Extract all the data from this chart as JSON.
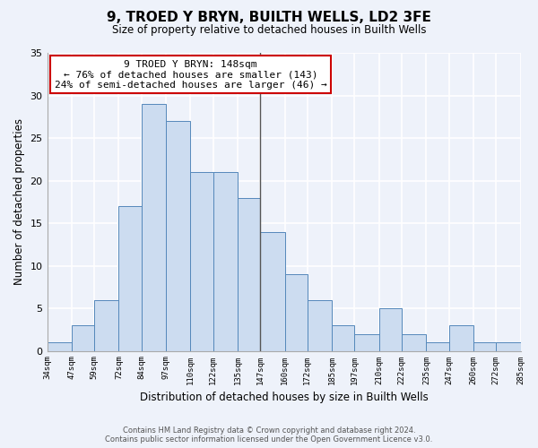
{
  "title": "9, TROED Y BRYN, BUILTH WELLS, LD2 3FE",
  "subtitle": "Size of property relative to detached houses in Builth Wells",
  "xlabel": "Distribution of detached houses by size in Builth Wells",
  "ylabel": "Number of detached properties",
  "bin_edges": [
    34,
    47,
    59,
    72,
    84,
    97,
    110,
    122,
    135,
    147,
    160,
    172,
    185,
    197,
    210,
    222,
    235,
    247,
    260,
    272,
    285
  ],
  "bin_labels": [
    "34sqm",
    "47sqm",
    "59sqm",
    "72sqm",
    "84sqm",
    "97sqm",
    "110sqm",
    "122sqm",
    "135sqm",
    "147sqm",
    "160sqm",
    "172sqm",
    "185sqm",
    "197sqm",
    "210sqm",
    "222sqm",
    "235sqm",
    "247sqm",
    "260sqm",
    "272sqm",
    "285sqm"
  ],
  "counts": [
    1,
    3,
    6,
    17,
    29,
    27,
    21,
    21,
    18,
    14,
    9,
    6,
    3,
    2,
    5,
    2,
    1,
    3,
    1,
    1
  ],
  "bar_color": "#ccdcf0",
  "bar_edge_color": "#5588bb",
  "vline_x": 147,
  "vline_color": "#555555",
  "annotation_title": "9 TROED Y BRYN: 148sqm",
  "annotation_line1": "← 76% of detached houses are smaller (143)",
  "annotation_line2": "24% of semi-detached houses are larger (46) →",
  "annotation_box_color": "#ffffff",
  "annotation_box_edge_color": "#cc0000",
  "ylim": [
    0,
    35
  ],
  "yticks": [
    0,
    5,
    10,
    15,
    20,
    25,
    30,
    35
  ],
  "footer_line1": "Contains HM Land Registry data © Crown copyright and database right 2024.",
  "footer_line2": "Contains public sector information licensed under the Open Government Licence v3.0.",
  "background_color": "#eef2fa"
}
